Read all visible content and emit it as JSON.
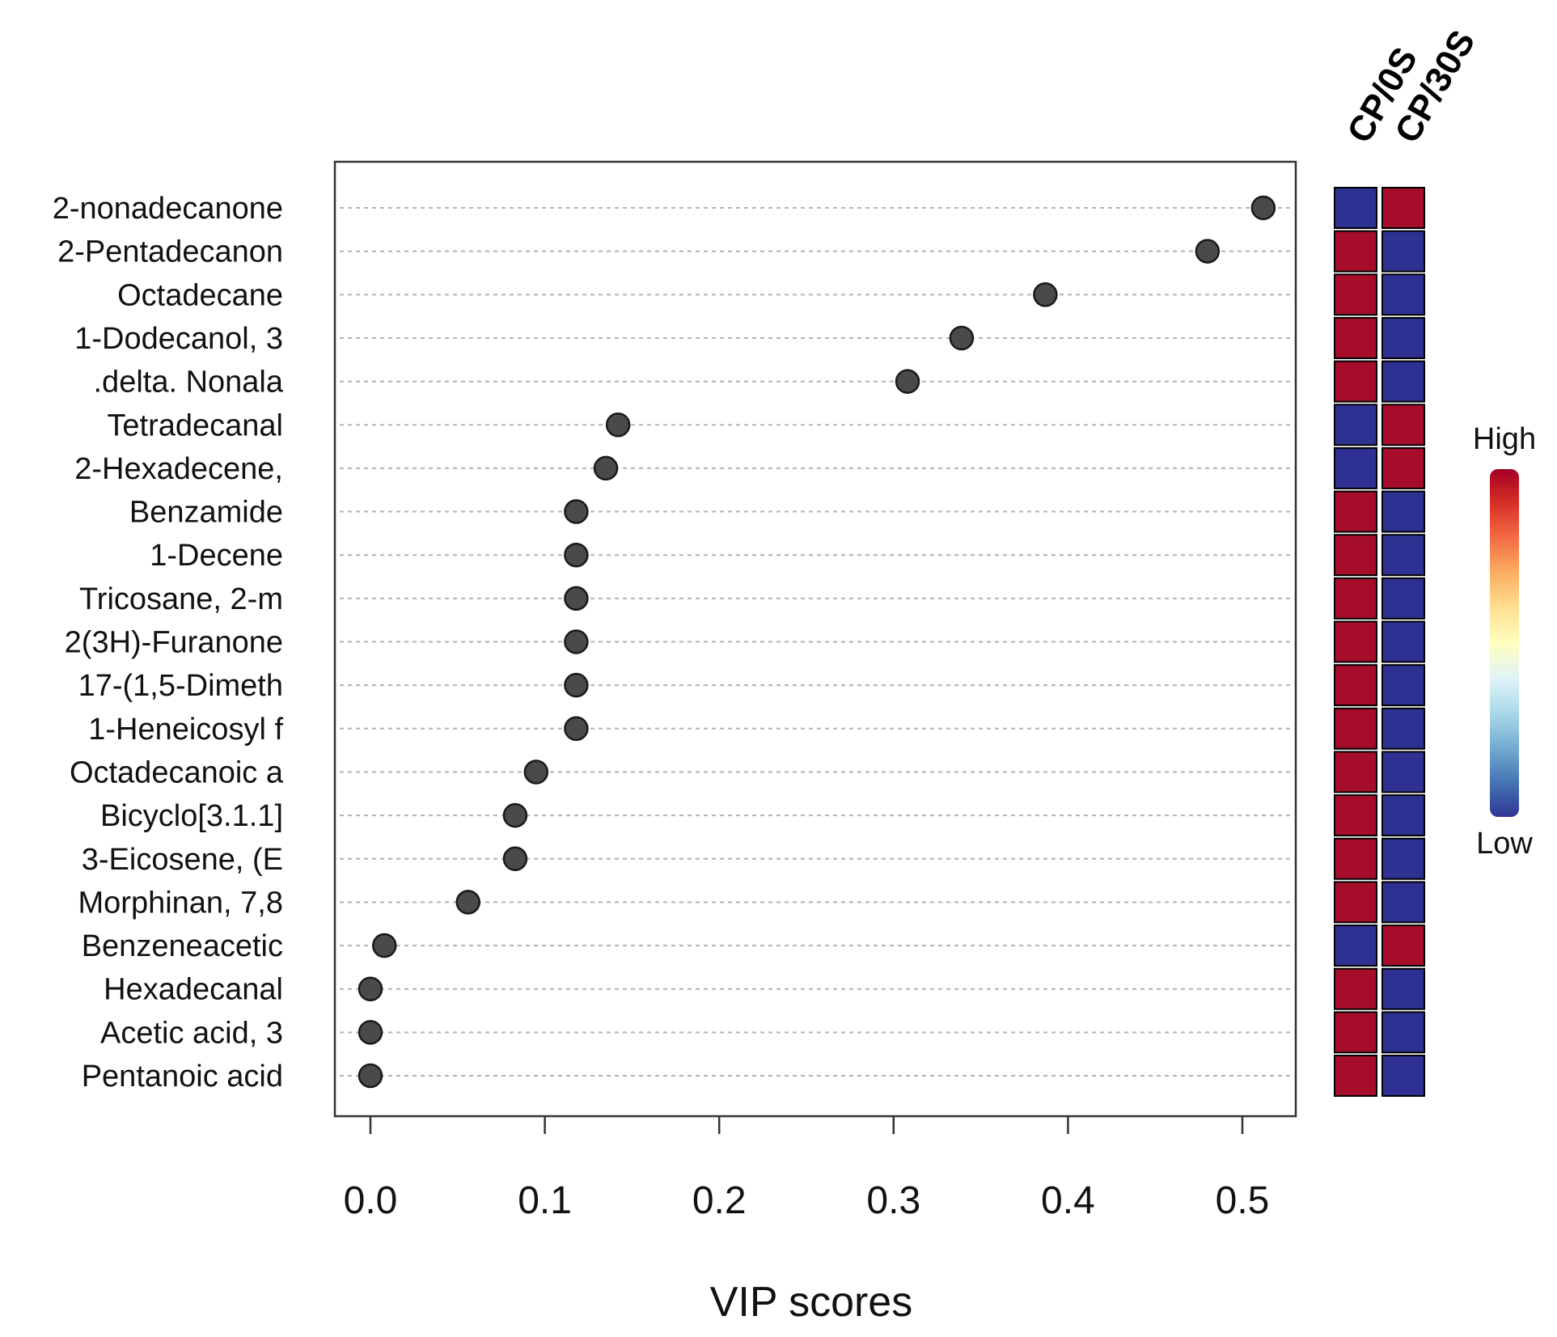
{
  "chart_data": {
    "type": "scatter",
    "xlabel": "VIP scores",
    "xlim": [
      -0.02,
      0.53
    ],
    "xticks": [
      0.0,
      0.1,
      0.2,
      0.3,
      0.4,
      0.5
    ],
    "xtick_labels": [
      "0.0",
      "0.1",
      "0.2",
      "0.3",
      "0.4",
      "0.5"
    ],
    "grid": "horizontal dotted",
    "categories": [
      "2-nonadecanone",
      "2-Pentadecanon",
      "Octadecane",
      "1-Dodecanol, 3",
      ".delta. Nonala",
      "Tetradecanal",
      "2-Hexadecene,",
      "Benzamide",
      "1-Decene",
      "Tricosane, 2-m",
      "2(3H)-Furanone",
      "17-(1,5-Dimeth",
      "1-Heneicosyl f",
      "Octadecanoic a",
      "Bicyclo[3.1.1]",
      "3-Eicosene, (E",
      "Morphinan, 7,8",
      "Benzeneacetic",
      "Hexadecanal",
      "Acetic acid, 3",
      "Pentanoic acid"
    ],
    "values": [
      0.512,
      0.48,
      0.387,
      0.339,
      0.308,
      0.142,
      0.135,
      0.118,
      0.118,
      0.118,
      0.118,
      0.118,
      0.118,
      0.095,
      0.083,
      0.083,
      0.056,
      0.008,
      0.0,
      0.0,
      0.0
    ],
    "heatmap": {
      "groups": [
        "CP/0S",
        "CP/30S"
      ],
      "levels": [
        [
          "Low",
          "High"
        ],
        [
          "High",
          "Low"
        ],
        [
          "High",
          "Low"
        ],
        [
          "High",
          "Low"
        ],
        [
          "High",
          "Low"
        ],
        [
          "Low",
          "High"
        ],
        [
          "Low",
          "High"
        ],
        [
          "High",
          "Low"
        ],
        [
          "High",
          "Low"
        ],
        [
          "High",
          "Low"
        ],
        [
          "High",
          "Low"
        ],
        [
          "High",
          "Low"
        ],
        [
          "High",
          "Low"
        ],
        [
          "High",
          "Low"
        ],
        [
          "High",
          "Low"
        ],
        [
          "High",
          "Low"
        ],
        [
          "High",
          "Low"
        ],
        [
          "Low",
          "High"
        ],
        [
          "High",
          "Low"
        ],
        [
          "High",
          "Low"
        ],
        [
          "High",
          "Low"
        ]
      ],
      "legend_high": "High",
      "legend_low": "Low"
    },
    "colors": {
      "high": "#a50d2b",
      "low": "#2e3192",
      "point": "#4a4a4a",
      "grid": "#b3b3b3",
      "scale": [
        "#a50026",
        "#d73027",
        "#f46d43",
        "#fdae61",
        "#fee090",
        "#ffffbf",
        "#e0f3f8",
        "#abd9e9",
        "#74add1",
        "#4575b4",
        "#313695"
      ]
    }
  }
}
